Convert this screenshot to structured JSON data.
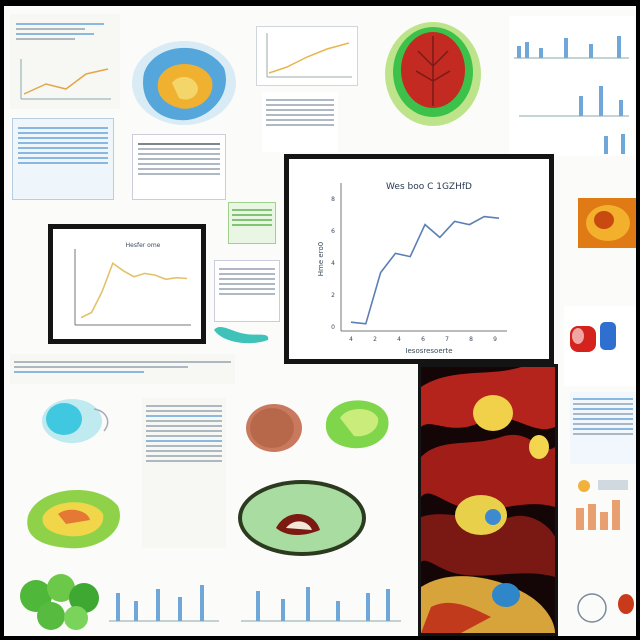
{
  "main_chart": {
    "title": "Wes boo C 1GZHfD",
    "ylabel": "Hme ero0",
    "xlabel": "Iesosresoerte",
    "x_ticks": [
      "4",
      "2",
      "4",
      "6",
      "7",
      "8",
      "9"
    ],
    "y_ticks": [
      "8",
      "6",
      "4",
      "2",
      "0"
    ]
  },
  "small_chart": {
    "title": "Hesfer ome"
  },
  "chart_data": [
    {
      "type": "line",
      "title": "Wes boo C 1GZHfD",
      "xlabel": "Iesosresoerte",
      "ylabel": "Hme ero0",
      "x": [
        0,
        1,
        2,
        3,
        4,
        5,
        6,
        7,
        8,
        9,
        10
      ],
      "y": [
        0.3,
        0.2,
        3.4,
        4.6,
        4.4,
        6.4,
        5.6,
        6.6,
        6.4,
        6.9,
        6.8
      ],
      "ylim": [
        0,
        8
      ],
      "grid": false
    },
    {
      "type": "line",
      "title": "Hesfer ome",
      "x": [
        0,
        1,
        2,
        3,
        4,
        5,
        6,
        7,
        8,
        9,
        10
      ],
      "y": [
        0.4,
        1.0,
        3.5,
        6.8,
        5.9,
        5.2,
        5.6,
        5.4,
        4.9,
        5.1,
        5.0
      ],
      "ylim": [
        0,
        8
      ],
      "grid": false
    }
  ],
  "colors": {
    "main_line": "#5b7fb4",
    "small_line": "#e2c26c",
    "frame": "#141414",
    "accent_blue": "#6fa7d8"
  },
  "icons": [
    "heart-illustration",
    "leaf-illustration",
    "cell-illustration",
    "tissue-photo"
  ]
}
